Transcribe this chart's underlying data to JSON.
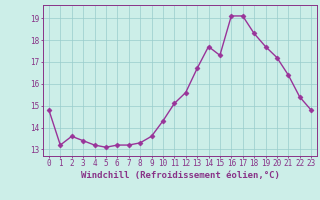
{
  "x": [
    0,
    1,
    2,
    3,
    4,
    5,
    6,
    7,
    8,
    9,
    10,
    11,
    12,
    13,
    14,
    15,
    16,
    17,
    18,
    19,
    20,
    21,
    22,
    23
  ],
  "y": [
    14.8,
    13.2,
    13.6,
    13.4,
    13.2,
    13.1,
    13.2,
    13.2,
    13.3,
    13.6,
    14.3,
    15.1,
    15.6,
    16.7,
    17.7,
    17.3,
    19.1,
    19.1,
    18.3,
    17.7,
    17.2,
    16.4,
    15.4,
    14.8
  ],
  "line_color": "#993399",
  "marker": "D",
  "markersize": 2.5,
  "linewidth": 1.0,
  "bg_color": "#cceee8",
  "grid_color": "#99cccc",
  "xlabel": "Windchill (Refroidissement éolien,°C)",
  "xlabel_fontsize": 6.5,
  "xlim": [
    -0.5,
    23.5
  ],
  "ylim": [
    12.7,
    19.6
  ],
  "yticks": [
    13,
    14,
    15,
    16,
    17,
    18,
    19
  ],
  "xticks": [
    0,
    1,
    2,
    3,
    4,
    5,
    6,
    7,
    8,
    9,
    10,
    11,
    12,
    13,
    14,
    15,
    16,
    17,
    18,
    19,
    20,
    21,
    22,
    23
  ],
  "tick_fontsize": 5.5,
  "tick_color": "#883388",
  "spine_color": "#883388"
}
